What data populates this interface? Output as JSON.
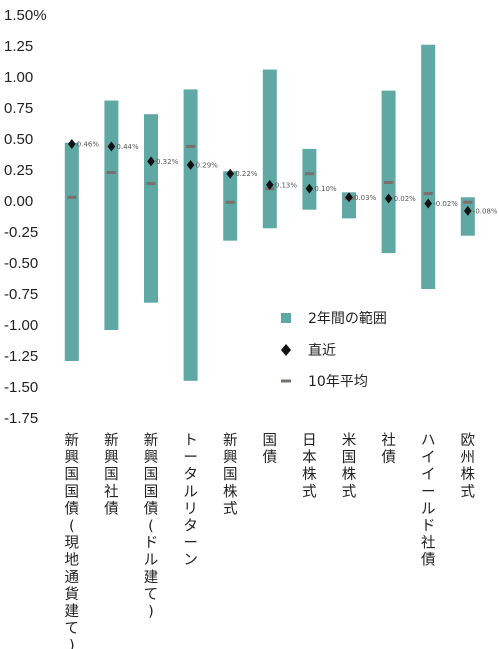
{
  "chart_data": {
    "type": "range-bar",
    "y_unit_suffix": "%",
    "ylim": [
      -1.75,
      1.5
    ],
    "yticks": [
      1.5,
      1.25,
      1.0,
      0.75,
      0.5,
      0.25,
      0.0,
      -0.25,
      -0.5,
      -0.75,
      -1.0,
      -1.25,
      -1.5,
      -1.75
    ],
    "ytick_labels": [
      "1.50%",
      "1.25",
      "1.00",
      "0.75",
      "0.50",
      "0.25",
      "0.00",
      "-0.25",
      "-0.50",
      "-0.75",
      "-1.00",
      "-1.25",
      "-1.50",
      "-1.75"
    ],
    "colors": {
      "range": "#5fa8a4",
      "latest": "#111111",
      "average": "#7a6f6a"
    },
    "categories": [
      {
        "name": "新興国国債(現地通貨建て)",
        "low": -1.29,
        "high": 0.47,
        "latest": 0.46,
        "latest_label": "0.46%",
        "average": 0.03
      },
      {
        "name": "新興国社債",
        "low": -1.04,
        "high": 0.81,
        "latest": 0.44,
        "latest_label": "0.44%",
        "average": 0.23
      },
      {
        "name": "新興国国債(ドル建て)",
        "low": -0.82,
        "high": 0.7,
        "latest": 0.32,
        "latest_label": "0.32%",
        "average": 0.14
      },
      {
        "name": "トータルリターン",
        "low": -1.45,
        "high": 0.9,
        "latest": 0.29,
        "latest_label": "0.29%",
        "average": 0.44
      },
      {
        "name": "新興国株式",
        "low": -0.32,
        "high": 0.24,
        "latest": 0.22,
        "latest_label": "0.22%",
        "average": -0.01
      },
      {
        "name": "国債",
        "low": -0.22,
        "high": 1.06,
        "latest": 0.13,
        "latest_label": "0.13%",
        "average": 0.1
      },
      {
        "name": "日本株式",
        "low": -0.07,
        "high": 0.42,
        "latest": 0.1,
        "latest_label": "0.10%",
        "average": 0.22
      },
      {
        "name": "米国株式",
        "low": -0.14,
        "high": 0.07,
        "latest": 0.03,
        "latest_label": "0.03%",
        "average": 0.02
      },
      {
        "name": "社債",
        "low": -0.42,
        "high": 0.89,
        "latest": 0.02,
        "latest_label": "0.02%",
        "average": 0.15
      },
      {
        "name": "ハイイールド社債",
        "low": -0.71,
        "high": 1.26,
        "latest": -0.02,
        "latest_label": "-0.02%",
        "average": 0.06
      },
      {
        "name": "欧州株式",
        "low": -0.28,
        "high": 0.03,
        "latest": -0.08,
        "latest_label": "-0.08%",
        "average": -0.01
      }
    ],
    "legend": {
      "placement": "center-right",
      "items": [
        {
          "kind": "range",
          "label": "2年間の範囲"
        },
        {
          "kind": "latest",
          "label": "直近"
        },
        {
          "kind": "average",
          "label": "10年平均"
        }
      ]
    }
  }
}
